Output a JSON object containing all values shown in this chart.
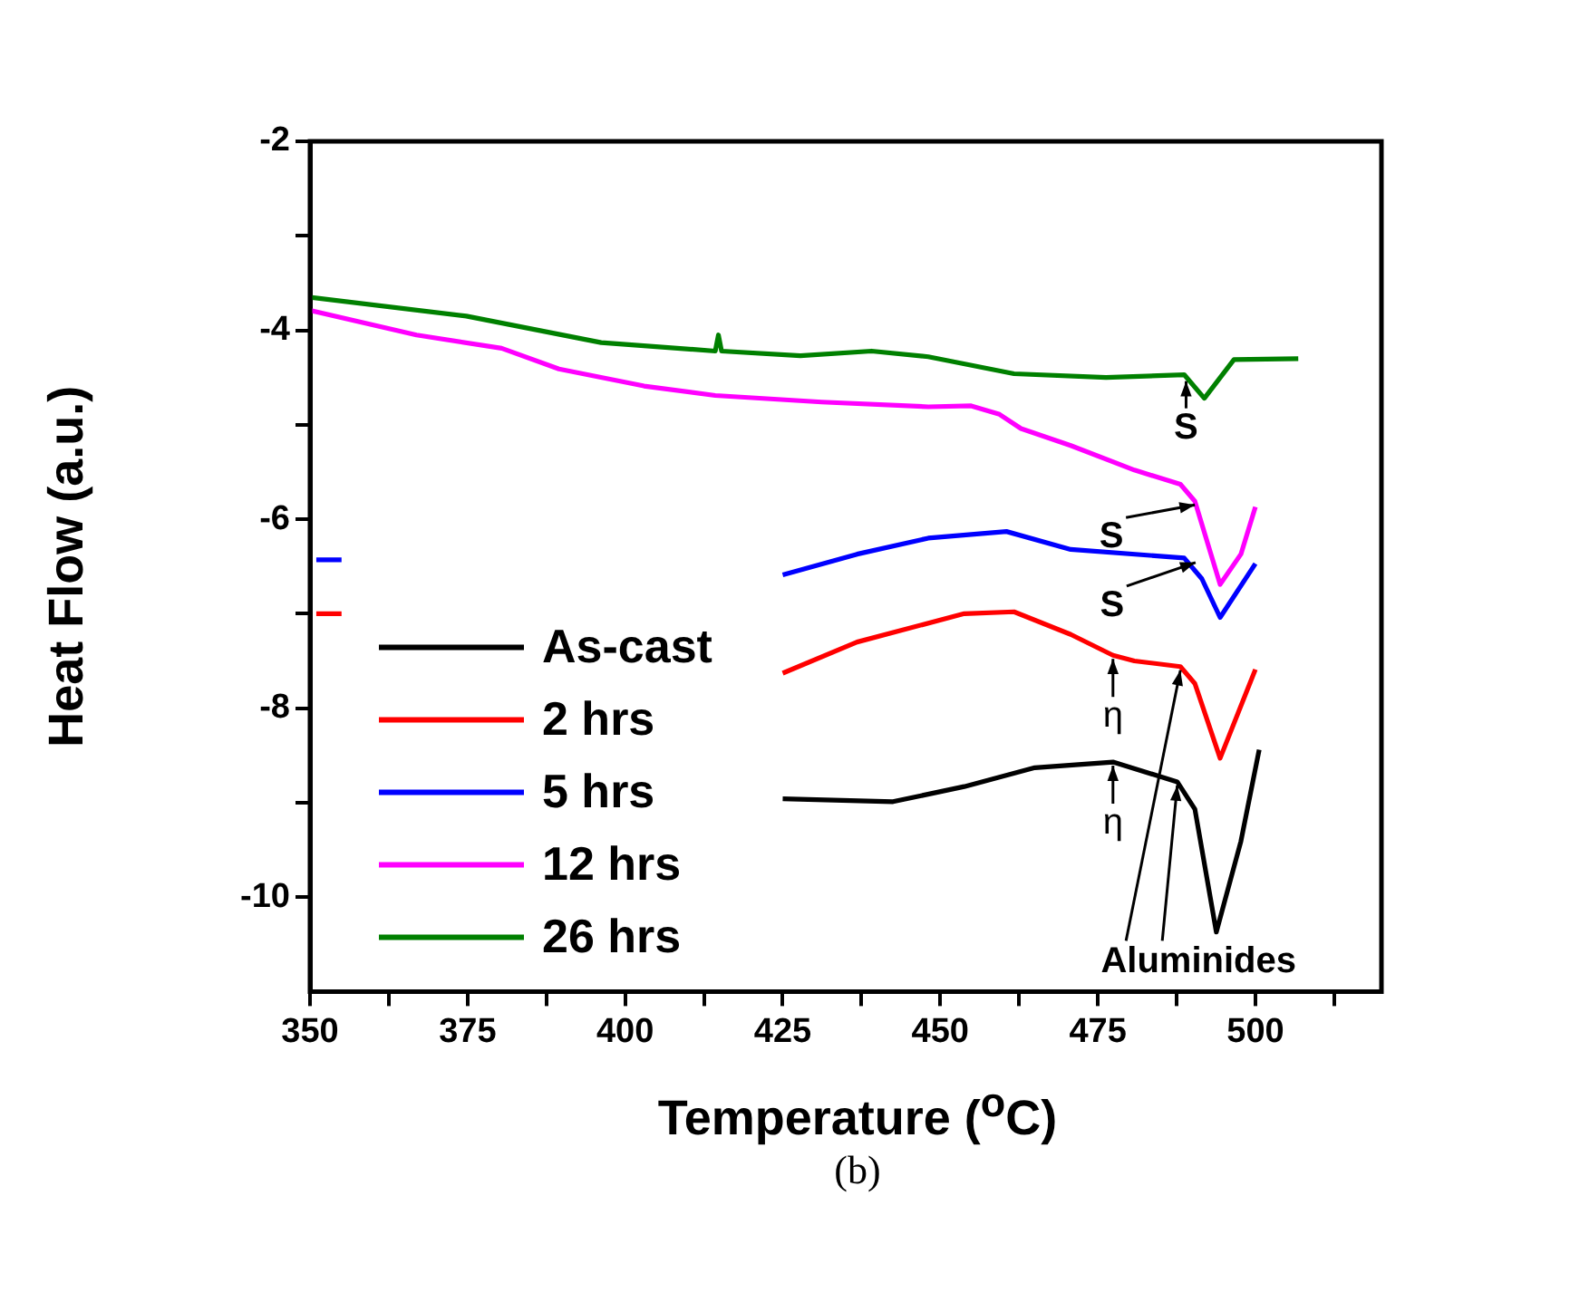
{
  "chart_data": {
    "type": "line",
    "xlabel": "Temperature ($^{o}$C)",
    "ylabel": "Heat Flow (a.u.)",
    "xlim": [
      350,
      520
    ],
    "xticks": [
      350,
      {
        "value": 362.5,
        "label": null
      },
      375,
      {
        "value": 387.5,
        "label": null
      },
      400,
      {
        "value": 412.5,
        "label": null
      },
      425,
      {
        "value": 437.5,
        "label": null
      },
      450,
      {
        "value": 462.5,
        "label": null
      },
      475,
      {
        "value": 487.5,
        "label": null
      },
      500,
      {
        "value": 512.5,
        "label": null
      }
    ],
    "ylim": [
      -11,
      -2
    ],
    "yticks": [
      -2,
      {
        "value": -3,
        "label": null
      },
      -4,
      {
        "value": -5,
        "label": null
      },
      -6,
      {
        "value": -7,
        "label": null
      },
      -8,
      {
        "value": -9,
        "label": null
      },
      -10
    ],
    "grid": false,
    "legend": "bottom left",
    "marker": "none",
    "line_style": "solid",
    "series": [
      {
        "name": "As-cast",
        "color": "#000000",
        "x": [
          425,
          442.5,
          453.8,
          465,
          477.4,
          487.6,
          490.4,
          493.8,
          497.7,
          500.6
        ],
        "values": [
          -8.96,
          -8.99,
          -8.83,
          -8.63,
          -8.57,
          -8.78,
          -9.07,
          -10.37,
          -9.41,
          -8.44
        ]
      },
      {
        "name": "2 hrs",
        "color": "#ff0000",
        "x": [
          351,
          355,
          360,
          425,
          436.8,
          453.8,
          461.7,
          470.7,
          477.4,
          480.8,
          488.1,
          490.4,
          494.4,
          500
        ],
        "values": [
          -7.0,
          -7.0,
          null,
          -7.63,
          -7.3,
          -7.0,
          -6.98,
          -7.22,
          -7.44,
          -7.5,
          -7.56,
          -7.74,
          -8.53,
          -7.59
        ]
      },
      {
        "name": "5 hrs",
        "color": "#0000ff",
        "x": [
          351,
          355,
          360,
          425,
          436.8,
          448.1,
          460.5,
          470.7,
          488.7,
          491.5,
          494.4,
          500
        ],
        "values": [
          -6.43,
          -6.43,
          null,
          -6.59,
          -6.37,
          -6.2,
          -6.13,
          -6.32,
          -6.41,
          -6.63,
          -7.04,
          -6.47
        ]
      },
      {
        "name": "12 hrs",
        "color": "#ff00ff",
        "x": [
          350,
          366.9,
          380.4,
          389.5,
          403,
          414.3,
          431.2,
          448.1,
          454.9,
          459.4,
          462.8,
          470.7,
          480.8,
          488.1,
          490.4,
          494.4,
          497.7,
          500
        ],
        "values": [
          -3.79,
          -4.05,
          -4.19,
          -4.41,
          -4.59,
          -4.69,
          -4.76,
          -4.81,
          -4.8,
          -4.89,
          -5.04,
          -5.22,
          -5.48,
          -5.63,
          -5.81,
          -6.69,
          -6.37,
          -5.87
        ]
      },
      {
        "name": "26 hrs",
        "color": "#008000",
        "x": [
          350,
          374.8,
          396.2,
          414.3,
          414.8,
          415.3,
          427.8,
          439.1,
          448.1,
          461.7,
          476.3,
          488.7,
          491.9,
          496.6,
          506.8
        ],
        "values": [
          -3.65,
          -3.85,
          -4.13,
          -4.22,
          -4.05,
          -4.22,
          -4.27,
          -4.22,
          -4.28,
          -4.46,
          -4.5,
          -4.47,
          -4.72,
          -4.31,
          -4.3
        ]
      }
    ],
    "annotations": [
      {
        "text": "S",
        "x": 489,
        "y": -4.5
      },
      {
        "text": "S",
        "x": 490.4,
        "y": -5.81
      },
      {
        "text": "S",
        "x": 490.5,
        "y": -6.42
      },
      {
        "text": "η",
        "x": 477.4,
        "y": -7.44
      },
      {
        "text": "η",
        "x": 477.4,
        "y": -8.57
      },
      {
        "text": "Aluminides",
        "x": 488.1,
        "y": -7.56
      },
      "(b)"
    ]
  }
}
